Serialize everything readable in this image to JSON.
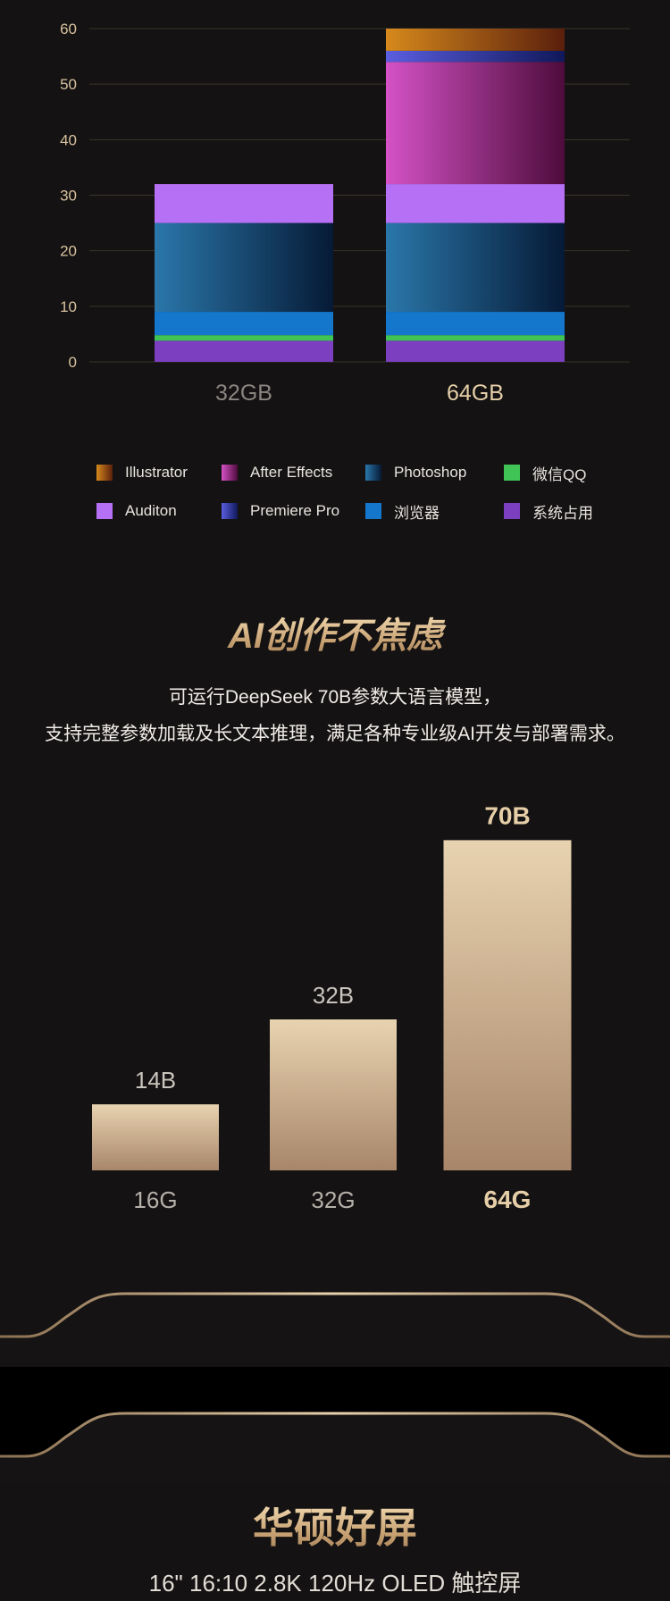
{
  "chart_data": [
    {
      "type": "bar",
      "stacked": true,
      "categories": [
        "32GB",
        "64GB"
      ],
      "ylim": [
        0,
        60
      ],
      "yticks": [
        0,
        10,
        20,
        30,
        40,
        50,
        60
      ],
      "grid": true,
      "legend_position": "bottom",
      "series": [
        {
          "name": "系统占用",
          "color": "#7b3fc0",
          "values": [
            3.8,
            3.8
          ]
        },
        {
          "name": "微信QQ",
          "color": "#3fc455",
          "values": [
            1.0,
            1.0
          ]
        },
        {
          "name": "浏览器",
          "color": "#1477cc",
          "values": [
            4.2,
            4.2
          ]
        },
        {
          "name": "Photoshop",
          "color": "#1e5f8f",
          "values": [
            16.0,
            16.0
          ]
        },
        {
          "name": "Auditon",
          "color": "#b670f5",
          "values": [
            7.0,
            7.0
          ]
        },
        {
          "name": "After Effects",
          "color": "#c94bbd",
          "values": [
            0,
            22.0
          ]
        },
        {
          "name": "Premiere Pro",
          "color": "#4a50d0",
          "values": [
            0,
            2.0
          ]
        },
        {
          "name": "Illustrator",
          "color": "#c97a14",
          "values": [
            0,
            4.0
          ]
        }
      ],
      "legend_order": [
        "Illustrator",
        "After Effects",
        "Photoshop",
        "微信QQ",
        "Auditon",
        "Premiere Pro",
        "浏览器",
        "系统占用"
      ]
    },
    {
      "type": "bar",
      "categories": [
        "16G",
        "32G",
        "64G"
      ],
      "values": [
        14,
        32,
        70
      ],
      "value_labels": [
        "14B",
        "32B",
        "70B"
      ],
      "highlight": "64G"
    }
  ],
  "section_ai": {
    "title": "AI创作不焦虑",
    "line1": "可运行DeepSeek 70B参数大语言模型，",
    "line2": "支持完整参数加载及长文本推理，满足各种专业级AI开发与部署需求。"
  },
  "section_screen": {
    "title": "华硕好屏",
    "subtitle": "16\" 16:10 2.8K 120Hz OLED 触控屏"
  },
  "colors": {
    "background": "#141212",
    "gold": "#c9a374",
    "band": "#000000"
  }
}
